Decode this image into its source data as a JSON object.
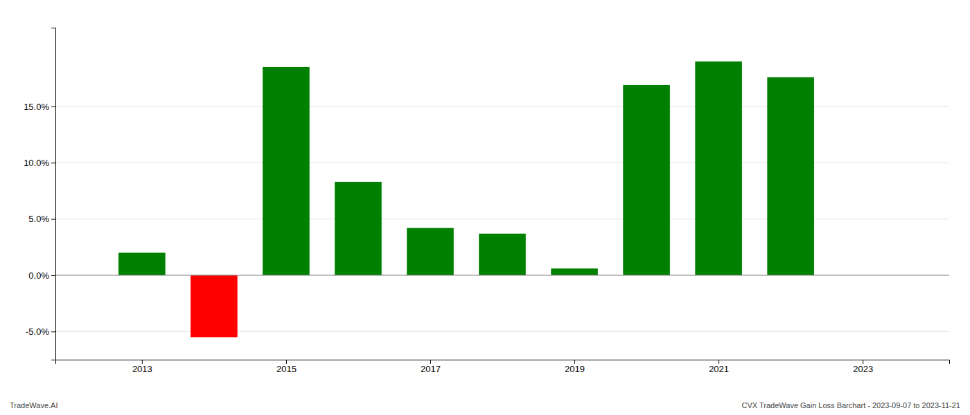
{
  "chart_data": {
    "type": "bar",
    "x": [
      2013,
      2014,
      2015,
      2016,
      2017,
      2018,
      2019,
      2020,
      2021,
      2022
    ],
    "values": [
      0.02,
      -0.055,
      0.185,
      0.083,
      0.042,
      0.037,
      0.006,
      0.169,
      0.19,
      0.176
    ],
    "colors": [
      "#008000",
      "#ff0000",
      "#008000",
      "#008000",
      "#008000",
      "#008000",
      "#008000",
      "#008000",
      "#008000",
      "#008000"
    ],
    "xlim": [
      2011.8,
      2024.2
    ],
    "xticks": [
      2013,
      2015,
      2017,
      2019,
      2021,
      2023
    ],
    "ylim": [
      -0.075,
      0.22
    ],
    "yticks": [
      {
        "value": -0.05,
        "label": "-5.0%"
      },
      {
        "value": 0.0,
        "label": "0.0%"
      },
      {
        "value": 0.05,
        "label": "5.0%"
      },
      {
        "value": 0.1,
        "label": "10.0%"
      },
      {
        "value": 0.15,
        "label": "15.0%"
      }
    ],
    "grid": true,
    "annotations": [
      "TradeWave.AI",
      "CVX TradeWave Gain Loss Barchart - 2023-09-07 to 2023-11-21"
    ]
  }
}
